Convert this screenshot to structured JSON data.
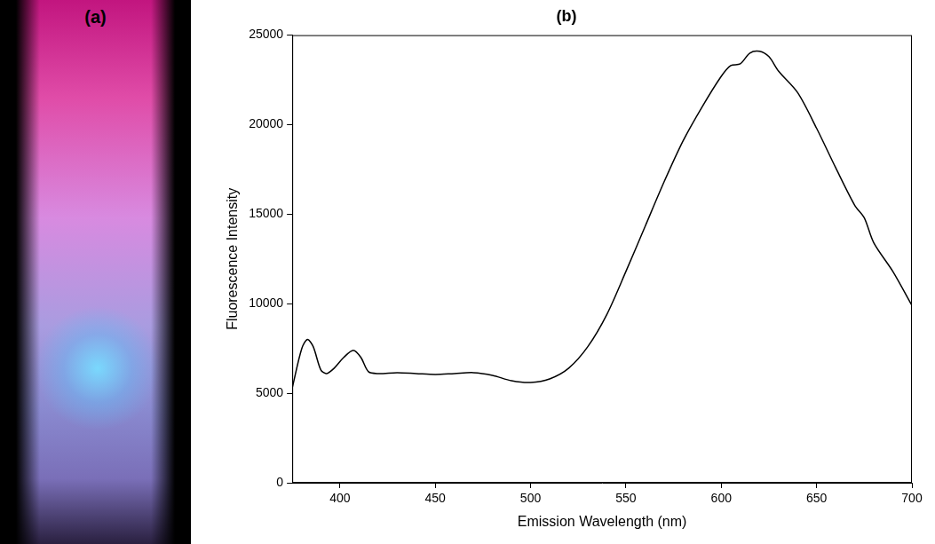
{
  "photo": {
    "label": "(a)"
  },
  "chart_data": {
    "type": "line",
    "title": "(b)",
    "x_label": "Emission Wavelength (nm)",
    "y_label": "Fluorescence Intensity",
    "x": [
      375,
      380,
      383,
      386,
      390,
      393,
      397,
      402,
      407,
      411,
      415,
      420,
      430,
      440,
      450,
      460,
      470,
      480,
      490,
      500,
      510,
      520,
      530,
      540,
      550,
      560,
      570,
      580,
      590,
      600,
      605,
      610,
      615,
      620,
      625,
      630,
      640,
      650,
      660,
      670,
      675,
      680,
      690,
      700
    ],
    "values": [
      5300,
      7500,
      8000,
      7600,
      6300,
      6100,
      6400,
      7000,
      7400,
      7000,
      6200,
      6100,
      6150,
      6100,
      6050,
      6100,
      6150,
      6000,
      5700,
      5600,
      5800,
      6400,
      7600,
      9400,
      11800,
      14300,
      16800,
      19100,
      21000,
      22700,
      23300,
      23400,
      24000,
      24100,
      23800,
      23000,
      21800,
      19800,
      17600,
      15500,
      14800,
      13400,
      11800,
      9900
    ],
    "color": "#000000",
    "xlim": [
      375,
      700
    ],
    "xticks": [
      400,
      450,
      500,
      550,
      600,
      650,
      700
    ],
    "ylim": [
      0,
      25000
    ],
    "yticks": [
      0,
      5000,
      10000,
      15000,
      20000,
      25000
    ],
    "grid": false
  }
}
